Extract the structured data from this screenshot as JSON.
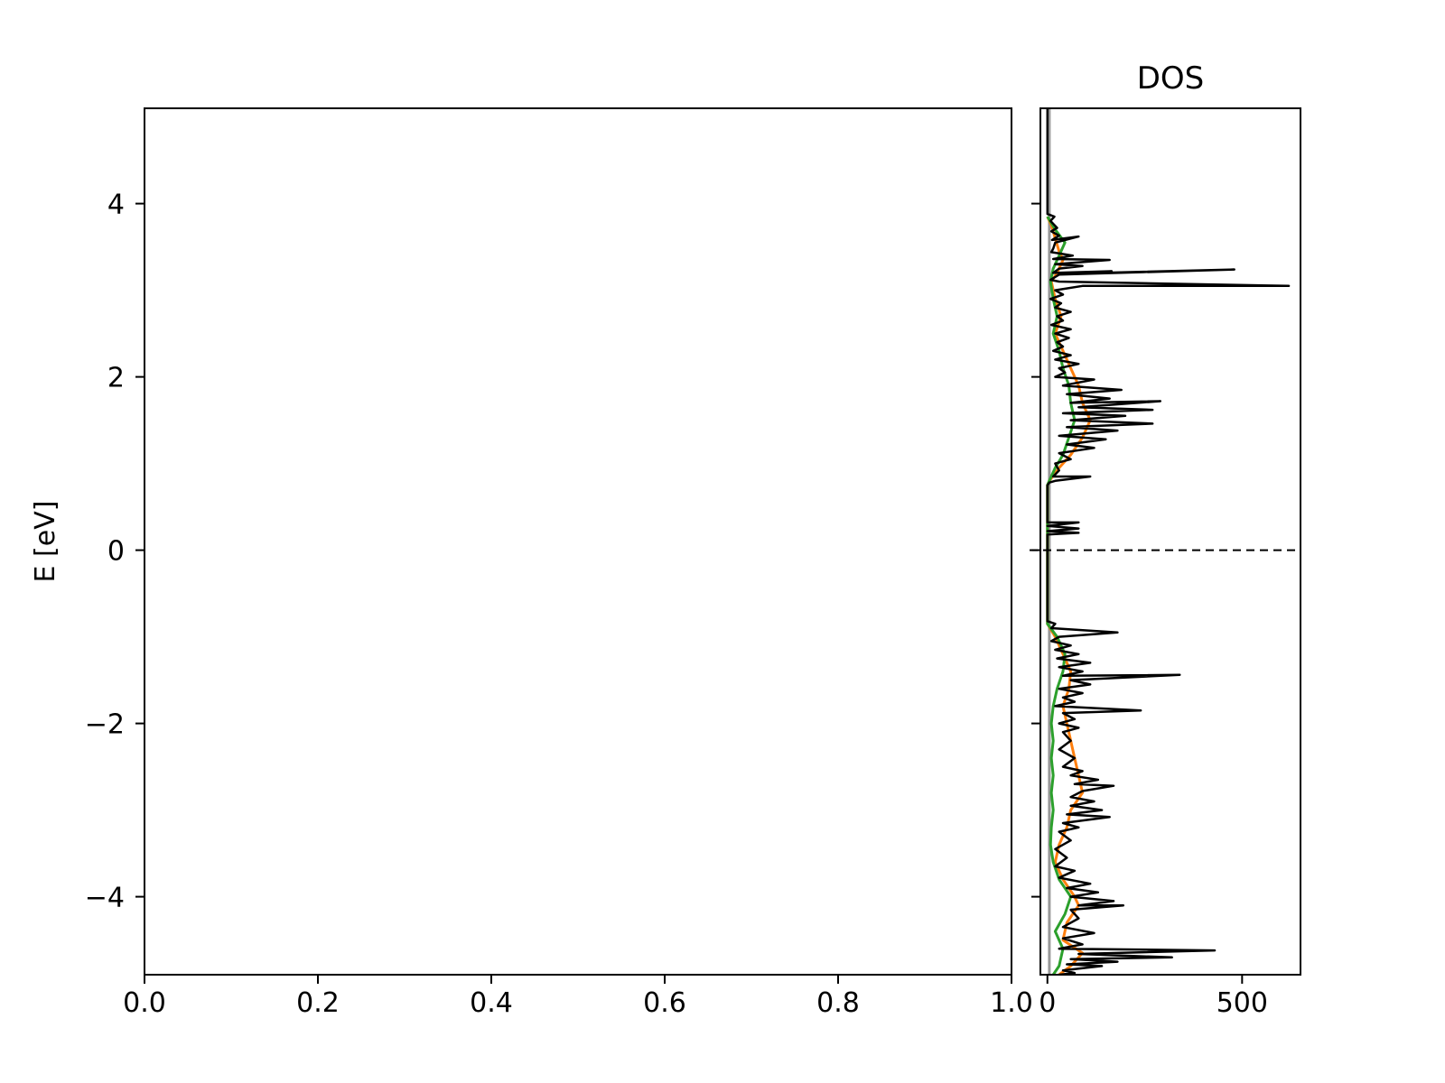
{
  "chart_data": [
    {
      "type": "line",
      "title": "",
      "xlabel": "",
      "ylabel": "E [eV]",
      "xlim": [
        0.0,
        1.0
      ],
      "ylim": [
        -4.9,
        5.1
      ],
      "xticks": [
        "0.0",
        "0.2",
        "0.4",
        "0.6",
        "0.8",
        "1.0"
      ],
      "yticks": [
        "−4",
        "−2",
        "0",
        "2",
        "4"
      ],
      "series": []
    },
    {
      "type": "line",
      "title": "DOS",
      "xlabel": "",
      "ylabel": "",
      "xlim": [
        -18,
        650
      ],
      "ylim": [
        -4.9,
        5.1
      ],
      "xticks": [
        "0",
        "500"
      ],
      "fermi_level": 0,
      "colors": {
        "total": "#000000",
        "orange": "#ff7f0e",
        "green": "#2ca02c",
        "grey": "#999999"
      },
      "series": [
        {
          "color": "#000000",
          "points": [
            [
              0,
              5.1
            ],
            [
              0,
              3.88
            ],
            [
              18,
              3.85
            ],
            [
              8,
              3.8
            ],
            [
              25,
              3.72
            ],
            [
              10,
              3.68
            ],
            [
              30,
              3.63
            ],
            [
              12,
              3.58
            ],
            [
              80,
              3.62
            ],
            [
              20,
              3.55
            ],
            [
              15,
              3.48
            ],
            [
              10,
              3.44
            ],
            [
              65,
              3.4
            ],
            [
              15,
              3.36
            ],
            [
              160,
              3.35
            ],
            [
              20,
              3.3
            ],
            [
              90,
              3.28
            ],
            [
              30,
              3.25
            ],
            [
              15,
              3.2
            ],
            [
              165,
              3.22
            ],
            [
              40,
              3.19
            ],
            [
              480,
              3.24
            ],
            [
              30,
              3.18
            ],
            [
              8,
              3.12
            ],
            [
              30,
              3.1
            ],
            [
              620,
              3.05
            ],
            [
              90,
              3.05
            ],
            [
              20,
              3.0
            ],
            [
              40,
              2.95
            ],
            [
              8,
              2.9
            ],
            [
              35,
              2.85
            ],
            [
              20,
              2.8
            ],
            [
              60,
              2.75
            ],
            [
              25,
              2.7
            ],
            [
              40,
              2.65
            ],
            [
              10,
              2.6
            ],
            [
              60,
              2.55
            ],
            [
              20,
              2.5
            ],
            [
              55,
              2.45
            ],
            [
              25,
              2.4
            ],
            [
              40,
              2.35
            ],
            [
              15,
              2.3
            ],
            [
              60,
              2.25
            ],
            [
              20,
              2.2
            ],
            [
              80,
              2.15
            ],
            [
              30,
              2.1
            ],
            [
              45,
              2.05
            ],
            [
              20,
              2.0
            ],
            [
              120,
              1.97
            ],
            [
              40,
              1.9
            ],
            [
              190,
              1.85
            ],
            [
              50,
              1.8
            ],
            [
              160,
              1.75
            ],
            [
              60,
              1.7
            ],
            [
              290,
              1.72
            ],
            [
              80,
              1.65
            ],
            [
              270,
              1.62
            ],
            [
              40,
              1.58
            ],
            [
              200,
              1.55
            ],
            [
              60,
              1.5
            ],
            [
              270,
              1.46
            ],
            [
              50,
              1.42
            ],
            [
              180,
              1.38
            ],
            [
              30,
              1.32
            ],
            [
              150,
              1.28
            ],
            [
              50,
              1.22
            ],
            [
              120,
              1.18
            ],
            [
              30,
              1.12
            ],
            [
              60,
              1.05
            ],
            [
              20,
              1.0
            ],
            [
              30,
              0.92
            ],
            [
              15,
              0.85
            ],
            [
              110,
              0.85
            ],
            [
              20,
              0.8
            ],
            [
              5,
              0.78
            ],
            [
              0,
              0.75
            ],
            [
              0,
              0.32
            ],
            [
              80,
              0.32
            ],
            [
              0,
              0.28
            ],
            [
              80,
              0.25
            ],
            [
              0,
              0.22
            ],
            [
              80,
              0.2
            ],
            [
              0,
              0.18
            ],
            [
              0,
              -0.82
            ],
            [
              20,
              -0.85
            ],
            [
              10,
              -0.9
            ],
            [
              180,
              -0.95
            ],
            [
              30,
              -1.0
            ],
            [
              10,
              -1.05
            ],
            [
              60,
              -1.1
            ],
            [
              20,
              -1.15
            ],
            [
              80,
              -1.2
            ],
            [
              25,
              -1.25
            ],
            [
              110,
              -1.3
            ],
            [
              30,
              -1.35
            ],
            [
              90,
              -1.4
            ],
            [
              40,
              -1.45
            ],
            [
              340,
              -1.44
            ],
            [
              60,
              -1.5
            ],
            [
              110,
              -1.55
            ],
            [
              30,
              -1.6
            ],
            [
              90,
              -1.65
            ],
            [
              40,
              -1.7
            ],
            [
              70,
              -1.75
            ],
            [
              20,
              -1.8
            ],
            [
              240,
              -1.85
            ],
            [
              40,
              -1.88
            ],
            [
              70,
              -1.95
            ],
            [
              30,
              -2.0
            ],
            [
              80,
              -2.05
            ],
            [
              40,
              -2.1
            ],
            [
              60,
              -2.2
            ],
            [
              30,
              -2.3
            ],
            [
              70,
              -2.4
            ],
            [
              40,
              -2.5
            ],
            [
              90,
              -2.55
            ],
            [
              60,
              -2.6
            ],
            [
              130,
              -2.65
            ],
            [
              70,
              -2.7
            ],
            [
              170,
              -2.72
            ],
            [
              90,
              -2.78
            ],
            [
              60,
              -2.85
            ],
            [
              120,
              -2.9
            ],
            [
              60,
              -2.95
            ],
            [
              140,
              -3.0
            ],
            [
              50,
              -3.05
            ],
            [
              160,
              -3.08
            ],
            [
              40,
              -3.15
            ],
            [
              80,
              -3.2
            ],
            [
              30,
              -3.25
            ],
            [
              60,
              -3.35
            ],
            [
              20,
              -3.45
            ],
            [
              50,
              -3.55
            ],
            [
              20,
              -3.65
            ],
            [
              70,
              -3.7
            ],
            [
              30,
              -3.78
            ],
            [
              110,
              -3.85
            ],
            [
              50,
              -3.9
            ],
            [
              130,
              -3.95
            ],
            [
              60,
              -4.0
            ],
            [
              170,
              -4.05
            ],
            [
              80,
              -4.1
            ],
            [
              195,
              -4.1
            ],
            [
              60,
              -4.15
            ],
            [
              80,
              -4.25
            ],
            [
              40,
              -4.35
            ],
            [
              120,
              -4.42
            ],
            [
              40,
              -4.48
            ],
            [
              90,
              -4.55
            ],
            [
              30,
              -4.6
            ],
            [
              430,
              -4.62
            ],
            [
              80,
              -4.66
            ],
            [
              320,
              -4.7
            ],
            [
              60,
              -4.72
            ],
            [
              180,
              -4.75
            ],
            [
              50,
              -4.78
            ],
            [
              140,
              -4.8
            ],
            [
              40,
              -4.85
            ],
            [
              70,
              -4.88
            ],
            [
              30,
              -4.9
            ]
          ]
        },
        {
          "color": "#ff7f0e",
          "points": [
            [
              0,
              3.85
            ],
            [
              10,
              3.75
            ],
            [
              20,
              3.6
            ],
            [
              30,
              3.45
            ],
            [
              40,
              3.35
            ],
            [
              25,
              3.2
            ],
            [
              10,
              3.1
            ],
            [
              20,
              2.9
            ],
            [
              35,
              2.7
            ],
            [
              20,
              2.5
            ],
            [
              40,
              2.3
            ],
            [
              60,
              2.1
            ],
            [
              80,
              1.9
            ],
            [
              90,
              1.7
            ],
            [
              110,
              1.5
            ],
            [
              90,
              1.3
            ],
            [
              60,
              1.1
            ],
            [
              30,
              0.95
            ],
            [
              5,
              0.8
            ],
            [
              0,
              0.75
            ],
            [
              0,
              -0.85
            ],
            [
              20,
              -1.0
            ],
            [
              40,
              -1.2
            ],
            [
              60,
              -1.4
            ],
            [
              55,
              -1.6
            ],
            [
              40,
              -1.8
            ],
            [
              50,
              -2.0
            ],
            [
              60,
              -2.2
            ],
            [
              70,
              -2.4
            ],
            [
              80,
              -2.6
            ],
            [
              90,
              -2.8
            ],
            [
              60,
              -3.0
            ],
            [
              50,
              -3.2
            ],
            [
              30,
              -3.4
            ],
            [
              20,
              -3.6
            ],
            [
              40,
              -3.8
            ],
            [
              70,
              -4.0
            ],
            [
              80,
              -4.1
            ],
            [
              50,
              -4.3
            ],
            [
              40,
              -4.5
            ],
            [
              90,
              -4.65
            ],
            [
              60,
              -4.8
            ],
            [
              30,
              -4.9
            ]
          ]
        },
        {
          "color": "#2ca02c",
          "points": [
            [
              0,
              3.85
            ],
            [
              20,
              3.7
            ],
            [
              45,
              3.55
            ],
            [
              30,
              3.4
            ],
            [
              15,
              3.25
            ],
            [
              8,
              3.1
            ],
            [
              15,
              2.9
            ],
            [
              25,
              2.7
            ],
            [
              15,
              2.5
            ],
            [
              30,
              2.3
            ],
            [
              40,
              2.1
            ],
            [
              55,
              1.9
            ],
            [
              60,
              1.7
            ],
            [
              70,
              1.5
            ],
            [
              55,
              1.3
            ],
            [
              40,
              1.1
            ],
            [
              20,
              0.95
            ],
            [
              5,
              0.8
            ],
            [
              0,
              0.75
            ],
            [
              0,
              -0.85
            ],
            [
              25,
              -1.0
            ],
            [
              45,
              -1.2
            ],
            [
              40,
              -1.4
            ],
            [
              25,
              -1.6
            ],
            [
              15,
              -1.8
            ],
            [
              10,
              -2.0
            ],
            [
              15,
              -2.2
            ],
            [
              10,
              -2.4
            ],
            [
              15,
              -2.6
            ],
            [
              10,
              -2.8
            ],
            [
              15,
              -3.0
            ],
            [
              10,
              -3.2
            ],
            [
              8,
              -3.4
            ],
            [
              15,
              -3.6
            ],
            [
              30,
              -3.8
            ],
            [
              60,
              -4.0
            ],
            [
              45,
              -4.2
            ],
            [
              20,
              -4.4
            ],
            [
              40,
              -4.6
            ],
            [
              30,
              -4.8
            ],
            [
              15,
              -4.9
            ]
          ]
        },
        {
          "color": "#999999",
          "points": [
            [
              5,
              5.1
            ],
            [
              5,
              -4.9
            ]
          ]
        }
      ]
    }
  ]
}
